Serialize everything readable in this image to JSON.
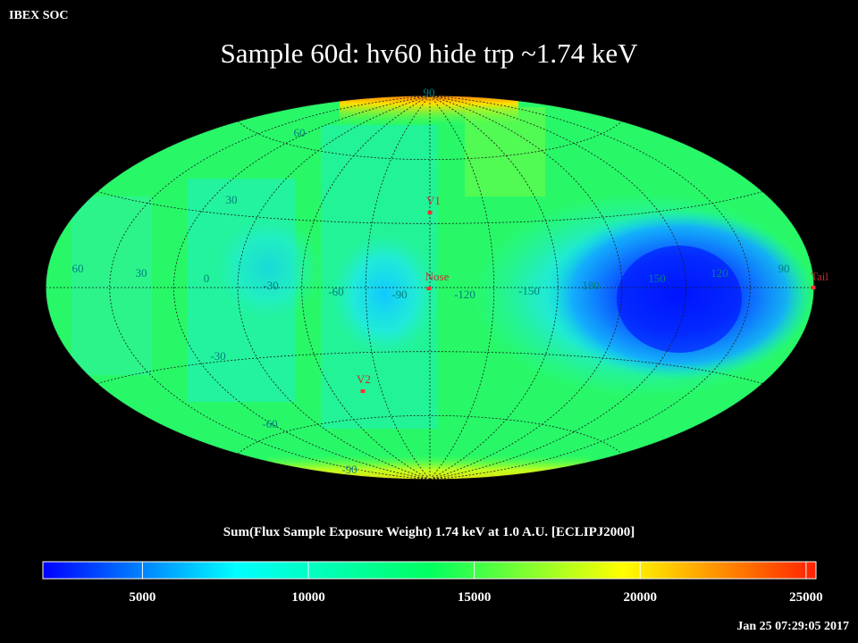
{
  "header": {
    "org": "IBEX SOC",
    "title": "Sample 60d: hv60 hide trp ~1.74 keV",
    "timestamp": "Jan 25 07:29:05 2017"
  },
  "map": {
    "projection": "aitoff",
    "grid_lon_labels": [
      "60",
      "30",
      "0",
      "-30",
      "-60",
      "-90",
      "-120",
      "-150",
      "180",
      "150",
      "120",
      "90"
    ],
    "grid_lat_labels": [
      "90",
      "60",
      "30",
      "-30",
      "-60",
      "-90"
    ],
    "markers": [
      {
        "name": "V1",
        "color": "#ff3030"
      },
      {
        "name": "Nose",
        "color": "#ff3030"
      },
      {
        "name": "V2",
        "color": "#ff3030"
      },
      {
        "name": "Tail",
        "color": "#ff3030"
      }
    ],
    "colors": {
      "grid": "#222222",
      "grid_label": "#008080",
      "marker_label": "#c03030"
    }
  },
  "colorbar": {
    "label": "Sum(Flux Sample Exposure Weight)  1.74 keV at 1.0 A.U. [ECLIPJ2000]",
    "min": 2000,
    "max": 25300,
    "ticks": [
      {
        "value": 5000,
        "label": "5000"
      },
      {
        "value": 10000,
        "label": "10000"
      },
      {
        "value": 15000,
        "label": "15000"
      },
      {
        "value": 20000,
        "label": "20000"
      },
      {
        "value": 25000,
        "label": "25000"
      }
    ],
    "stops": [
      "#0000ff",
      "#00ffff",
      "#00ff60",
      "#ffff00",
      "#ff2000"
    ]
  }
}
